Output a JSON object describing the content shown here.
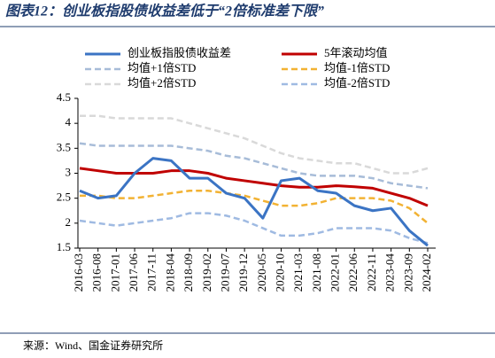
{
  "chart_data": {
    "type": "line",
    "title": "图表12：创业板指股债收益差低于“2倍标准差下限”",
    "source": "来源：Wind、国金证券研究所",
    "categories": [
      "2016-03",
      "2016-08",
      "2017-01",
      "2017-06",
      "2017-11",
      "2018-04",
      "2018-09",
      "2019-02",
      "2019-07",
      "2019-12",
      "2020-05",
      "2020-10",
      "2021-03",
      "2021-08",
      "2022-01",
      "2022-06",
      "2022-11",
      "2023-04",
      "2023-09",
      "2024-02"
    ],
    "ylim": [
      1.5,
      4.5
    ],
    "yticks": [
      1.5,
      2,
      2.5,
      3,
      3.5,
      4,
      4.5
    ],
    "grid": false,
    "series": [
      {
        "name": "创业板指股债收益差",
        "color": "#3b74c4",
        "dash": false,
        "width": 3,
        "values": [
          2.65,
          2.5,
          2.55,
          3.0,
          3.3,
          3.25,
          2.9,
          2.9,
          2.6,
          2.5,
          2.1,
          2.85,
          2.9,
          2.65,
          2.6,
          2.35,
          2.25,
          2.3,
          1.85,
          1.55
        ]
      },
      {
        "name": "5年滚动均值",
        "color": "#c00000",
        "dash": false,
        "width": 3,
        "values": [
          3.1,
          3.05,
          3.0,
          3.0,
          3.0,
          3.05,
          3.05,
          3.0,
          2.9,
          2.85,
          2.8,
          2.75,
          2.72,
          2.72,
          2.75,
          2.73,
          2.7,
          2.6,
          2.5,
          2.35
        ]
      },
      {
        "name": "均值+1倍STD",
        "color": "#a7bcd8",
        "dash": true,
        "width": 2.5,
        "values": [
          3.6,
          3.55,
          3.55,
          3.55,
          3.55,
          3.55,
          3.5,
          3.45,
          3.35,
          3.3,
          3.2,
          3.1,
          3.0,
          2.95,
          2.95,
          2.95,
          2.9,
          2.8,
          2.75,
          2.7
        ]
      },
      {
        "name": "均值-1倍STD",
        "color": "#f2b233",
        "dash": true,
        "width": 2.5,
        "values": [
          2.55,
          2.55,
          2.5,
          2.5,
          2.55,
          2.6,
          2.65,
          2.65,
          2.6,
          2.55,
          2.45,
          2.35,
          2.35,
          2.4,
          2.5,
          2.5,
          2.5,
          2.45,
          2.3,
          2.0
        ]
      },
      {
        "name": "均值+2倍STD",
        "color": "#d9d9d9",
        "dash": true,
        "width": 2.5,
        "values": [
          4.15,
          4.15,
          4.1,
          4.1,
          4.1,
          4.1,
          4.0,
          3.9,
          3.8,
          3.7,
          3.55,
          3.4,
          3.3,
          3.25,
          3.2,
          3.2,
          3.1,
          3.0,
          3.0,
          3.1
        ]
      },
      {
        "name": "均值-2倍STD",
        "color": "#9fbae2",
        "dash": true,
        "width": 2.5,
        "values": [
          2.05,
          2.0,
          1.95,
          2.0,
          2.05,
          2.1,
          2.2,
          2.2,
          2.15,
          2.05,
          1.9,
          1.75,
          1.75,
          1.8,
          1.9,
          1.9,
          1.9,
          1.85,
          1.7,
          1.6
        ]
      }
    ]
  }
}
